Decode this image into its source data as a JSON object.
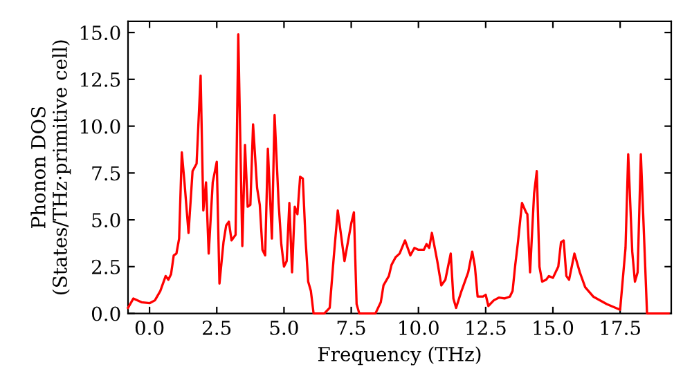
{
  "chart_data": {
    "type": "line",
    "xlabel": "Frequency (THz)",
    "ylabel": "Phonon DOS\n(States/THz·primitive cell)",
    "x": [
      -0.8,
      -0.6,
      -0.3,
      0.0,
      0.2,
      0.4,
      0.6,
      0.7,
      0.8,
      0.9,
      1.0,
      1.1,
      1.2,
      1.3,
      1.45,
      1.6,
      1.75,
      1.9,
      2.0,
      2.1,
      2.2,
      2.35,
      2.5,
      2.6,
      2.75,
      2.85,
      2.95,
      3.05,
      3.2,
      3.3,
      3.45,
      3.55,
      3.65,
      3.75,
      3.85,
      4.0,
      4.1,
      4.2,
      4.3,
      4.4,
      4.55,
      4.65,
      4.8,
      4.9,
      5.0,
      5.1,
      5.2,
      5.3,
      5.4,
      5.5,
      5.6,
      5.7,
      5.8,
      5.9,
      6.0,
      6.1,
      6.5,
      6.7,
      6.85,
      7.0,
      7.25,
      7.5,
      7.6,
      7.7,
      7.8,
      8.4,
      8.6,
      8.7,
      8.9,
      9.0,
      9.15,
      9.3,
      9.5,
      9.7,
      9.85,
      10.0,
      10.2,
      10.3,
      10.4,
      10.5,
      10.7,
      10.85,
      11.0,
      11.2,
      11.3,
      11.4,
      11.6,
      11.85,
      12.0,
      12.1,
      12.2,
      12.4,
      12.5,
      12.6,
      12.8,
      13.0,
      13.2,
      13.4,
      13.5,
      13.6,
      13.7,
      13.85,
      14.0,
      14.05,
      14.15,
      14.3,
      14.4,
      14.5,
      14.6,
      14.75,
      14.85,
      15.0,
      15.2,
      15.3,
      15.4,
      15.5,
      15.6,
      15.8,
      16.0,
      16.2,
      16.5,
      17.0,
      17.5,
      17.7,
      17.8,
      17.95,
      18.05,
      18.15,
      18.27,
      18.5,
      19.3
    ],
    "series": [
      {
        "color": "#ff0000",
        "values": [
          0.3,
          0.8,
          0.6,
          0.55,
          0.7,
          1.2,
          2.0,
          1.8,
          2.1,
          3.1,
          3.2,
          4.0,
          8.6,
          7.0,
          4.3,
          7.6,
          8.0,
          12.7,
          5.5,
          7.0,
          3.2,
          7.0,
          8.1,
          1.6,
          3.8,
          4.7,
          4.9,
          3.9,
          4.2,
          14.9,
          3.6,
          9.0,
          5.7,
          5.8,
          10.1,
          6.7,
          5.8,
          3.4,
          3.1,
          8.8,
          4.0,
          10.6,
          5.9,
          3.7,
          2.5,
          2.8,
          5.9,
          2.2,
          5.7,
          5.3,
          7.3,
          7.2,
          4.0,
          1.7,
          1.2,
          0.0,
          0.0,
          0.3,
          3.0,
          5.5,
          2.8,
          4.8,
          5.4,
          0.5,
          0.0,
          0.0,
          0.6,
          1.5,
          2.0,
          2.6,
          3.0,
          3.2,
          3.9,
          3.1,
          3.5,
          3.4,
          3.4,
          3.7,
          3.5,
          4.3,
          2.8,
          1.5,
          1.8,
          3.2,
          0.8,
          0.3,
          1.2,
          2.2,
          3.3,
          2.5,
          0.9,
          0.9,
          1.0,
          0.4,
          0.7,
          0.85,
          0.8,
          0.9,
          1.2,
          2.6,
          3.8,
          5.9,
          5.4,
          5.3,
          2.2,
          6.4,
          7.6,
          2.5,
          1.7,
          1.8,
          2.0,
          1.9,
          2.5,
          3.8,
          3.9,
          2.0,
          1.8,
          3.2,
          2.2,
          1.4,
          0.9,
          0.5,
          0.2,
          3.5,
          8.5,
          3.3,
          1.7,
          2.2,
          8.5,
          0.0,
          0.0
        ]
      }
    ],
    "xlim": [
      -0.8,
      19.4
    ],
    "ylim": [
      0,
      15.6
    ],
    "xticks": [
      {
        "value": 0,
        "label": "0.0"
      },
      {
        "value": 2.5,
        "label": "2.5"
      },
      {
        "value": 5,
        "label": "5.0"
      },
      {
        "value": 7.5,
        "label": "7.5"
      },
      {
        "value": 10,
        "label": "10.0"
      },
      {
        "value": 12.5,
        "label": "12.5"
      },
      {
        "value": 15,
        "label": "15.0"
      },
      {
        "value": 17.5,
        "label": "17.5"
      }
    ],
    "yticks": [
      {
        "value": 0,
        "label": "0.0"
      },
      {
        "value": 2.5,
        "label": "2.5"
      },
      {
        "value": 5,
        "label": "5.0"
      },
      {
        "value": 7.5,
        "label": "7.5"
      },
      {
        "value": 10,
        "label": "10.0"
      },
      {
        "value": 12.5,
        "label": "12.5"
      },
      {
        "value": 15,
        "label": "15.0"
      }
    ],
    "grid": false,
    "legend": false,
    "marker": "none",
    "line_style": "solid"
  }
}
